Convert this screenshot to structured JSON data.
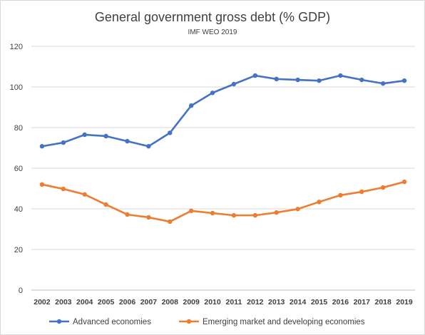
{
  "chart_data": {
    "type": "line",
    "title": "General government gross debt (% GDP)",
    "subtitle": "IMF WEO 2019",
    "xlabel": "",
    "ylabel": "",
    "ylim": [
      0,
      120
    ],
    "yticks": [
      "0",
      "20",
      "40",
      "60",
      "80",
      "100",
      "120"
    ],
    "grid": true,
    "legend_position": "bottom",
    "categories": [
      "2002",
      "2003",
      "2004",
      "2005",
      "2006",
      "2007",
      "2008",
      "2009",
      "2010",
      "2011",
      "2012",
      "2013",
      "2014",
      "2015",
      "2016",
      "2017",
      "2018",
      "2019"
    ],
    "series": [
      {
        "name": "Advanced economies",
        "color": "#4472c4",
        "values": [
          70.8,
          72.6,
          76.5,
          75.8,
          73.3,
          70.8,
          77.4,
          90.8,
          97.1,
          101.4,
          105.6,
          103.9,
          103.5,
          103.1,
          105.6,
          103.5,
          101.7,
          103.1
        ]
      },
      {
        "name": "Emerging market and developing economies",
        "color": "#ed7d31",
        "values": [
          52.0,
          49.8,
          47.1,
          42.1,
          37.2,
          35.8,
          33.7,
          39.0,
          37.9,
          36.8,
          36.8,
          38.2,
          39.9,
          43.4,
          46.7,
          48.4,
          50.5,
          53.3
        ]
      }
    ]
  }
}
